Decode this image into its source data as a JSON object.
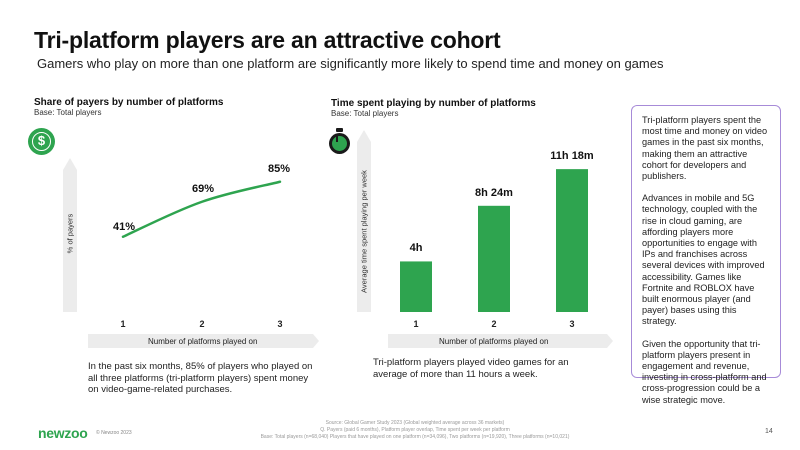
{
  "header": {
    "title": "Tri-platform players are an attractive cohort",
    "subtitle": "Gamers who play on more than one platform are significantly more likely to spend time and money on games"
  },
  "chart_data": [
    {
      "type": "line",
      "title": "Share of payers by number of platforms",
      "base": "Base: Total players",
      "ylabel": "% of payers",
      "xlabel": "Number of platforms played on",
      "categories": [
        "1",
        "2",
        "3"
      ],
      "values": [
        41,
        69,
        85
      ],
      "data_labels": [
        "41%",
        "69%",
        "85%"
      ],
      "ylim": [
        0,
        100
      ],
      "color": "#2ea44f",
      "caption": "In the past six months, 85% of players who played on all three platforms (tri-platform players) spent money on video-game-related purchases."
    },
    {
      "type": "bar",
      "title": "Time spent playing by number of platforms",
      "base": "Base: Total players",
      "ylabel": "Average time spent playing per week",
      "xlabel": "Number of platforms played on",
      "categories": [
        "1",
        "2",
        "3"
      ],
      "values": [
        4.0,
        8.4,
        11.3
      ],
      "data_labels": [
        "4h",
        "8h 24m",
        "11h 18m"
      ],
      "ylim": [
        0,
        14
      ],
      "color": "#2ea44f",
      "caption": "Tri-platform players played video games for an average of more than 11 hours a week."
    }
  ],
  "icons": {
    "chart1": "dollar-icon",
    "chart2": "stopwatch-icon"
  },
  "sidebox": {
    "paragraphs": [
      "Tri-platform players spent the most time and money on video games in the past six months, making them an attractive cohort for developers and publishers.",
      "Advances in mobile and 5G technology, coupled with the rise in cloud gaming, are affording players more opportunities to engage with IPs and franchises across several devices with improved accessibility. Games like Fortnite and ROBLOX have built enormous player (and payer) bases using this strategy.",
      "Given the opportunity that tri-platform players present in engagement and revenue, investing in cross-platform and cross-progression could be a wise strategic move."
    ]
  },
  "footer": {
    "logo": "newzoo",
    "copyright": "© Newzoo 2023",
    "source_lines": [
      "Source: Global Gamer Study 2023 (Global weighted average across 36 markets)",
      "Q. Payers (paid 6 months), Platform player overlap, Time spent per week per platform",
      "Base: Total players (n=68,040) Players that have played on one platform (n=34,096), Two platforms (n=19,920), Three platforms (n=10,021)"
    ],
    "page_number": "14"
  },
  "colors": {
    "accent": "#2ea44f",
    "box_border": "#a78bd8",
    "axis_band": "#ececec"
  }
}
